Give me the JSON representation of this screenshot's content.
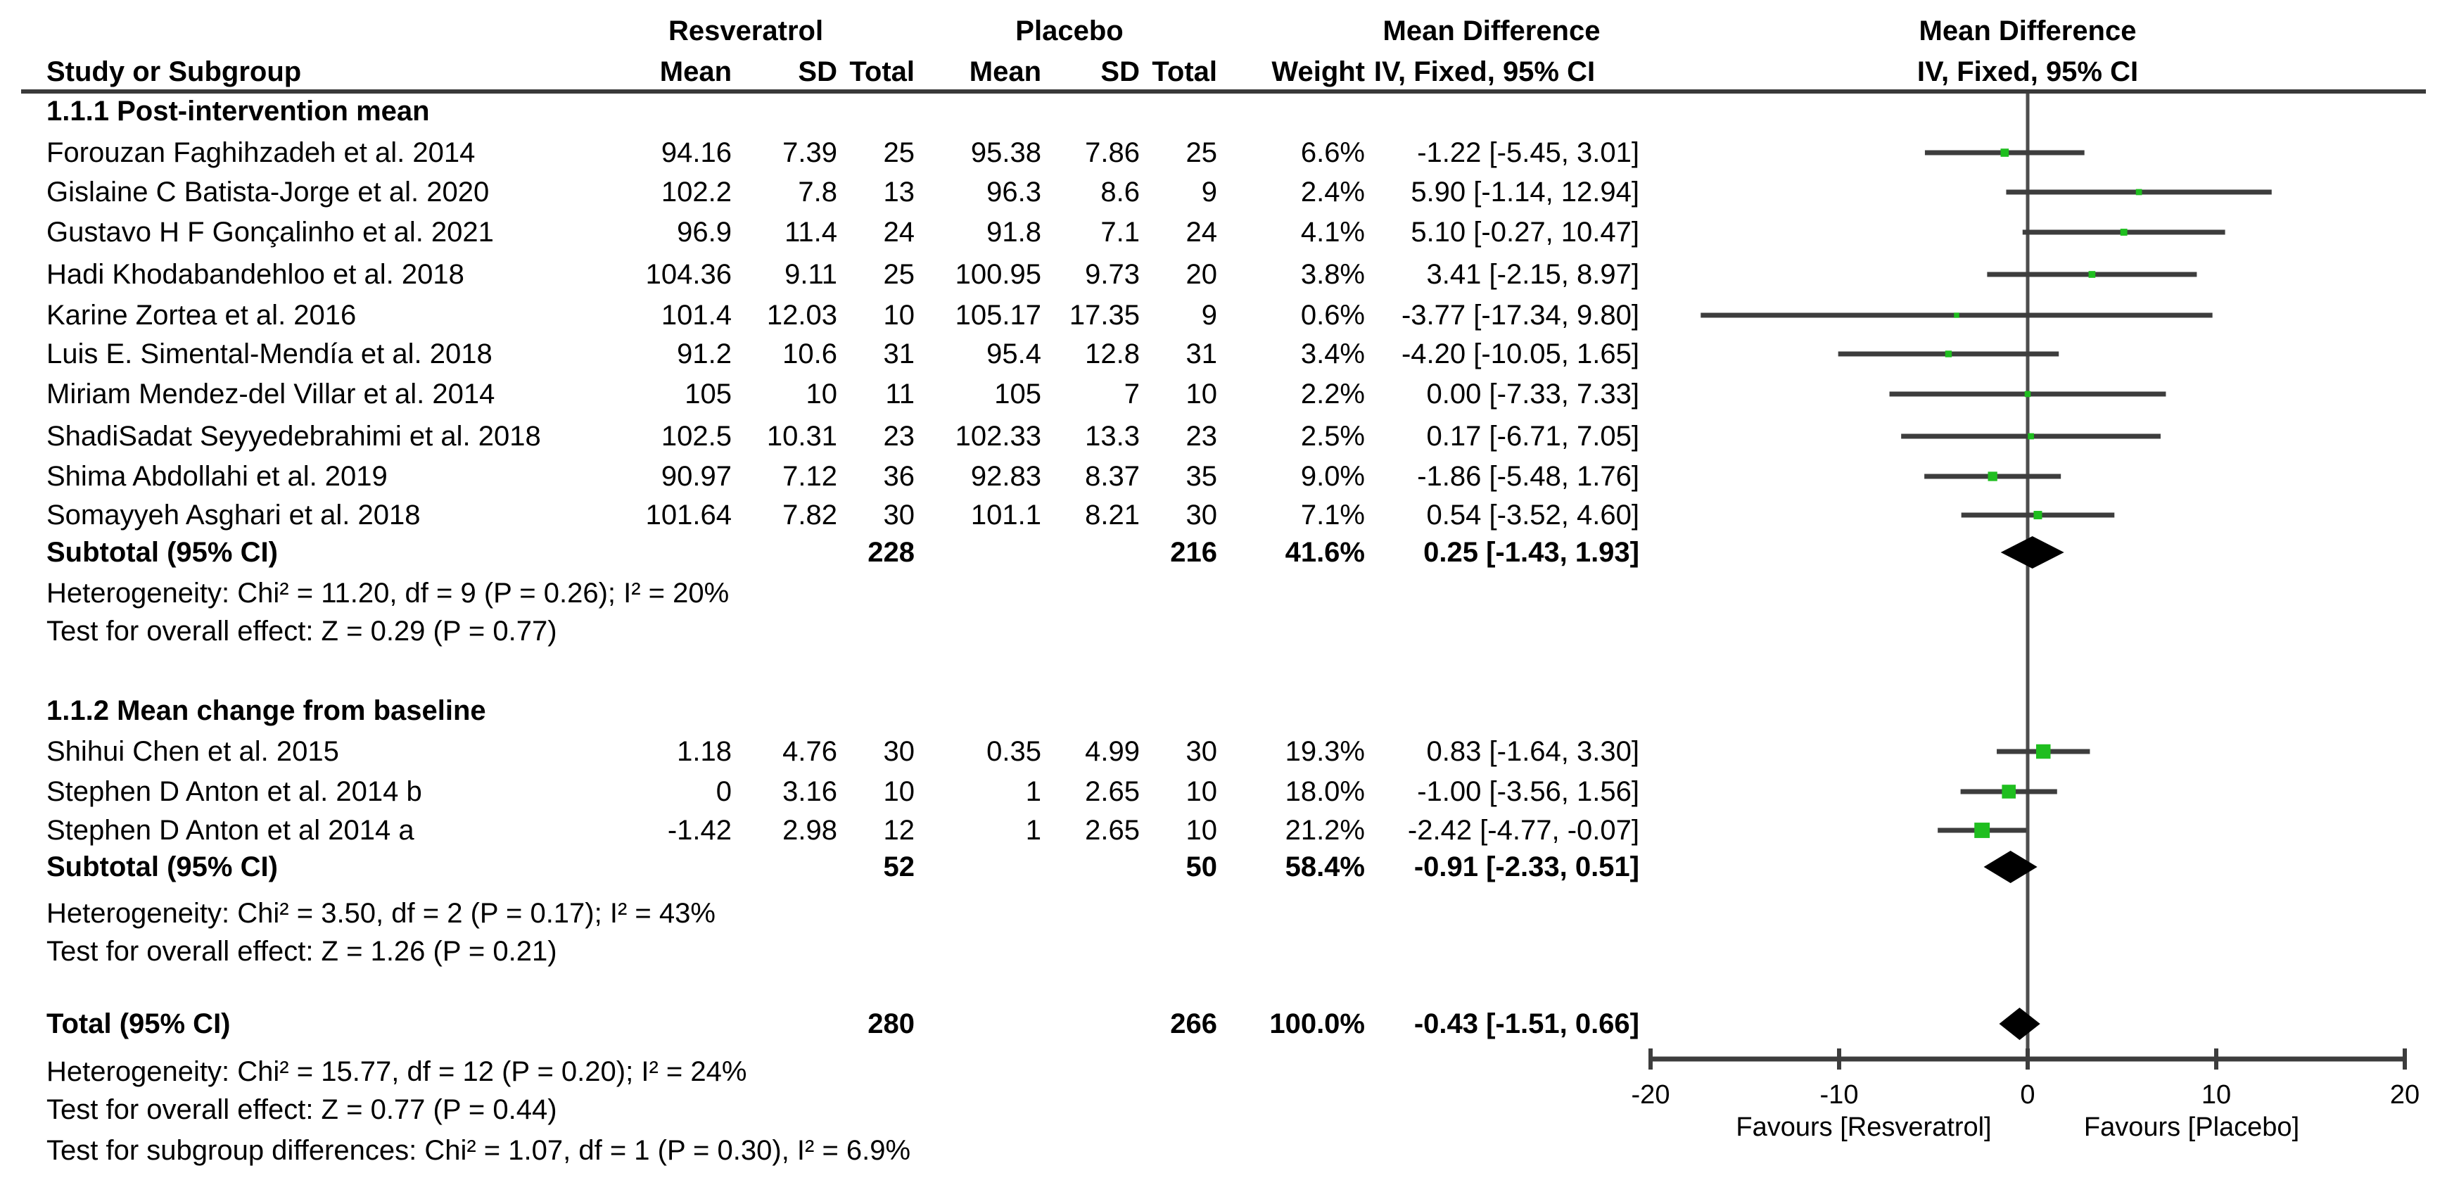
{
  "columns": {
    "group1": "Resveratrol",
    "group2": "Placebo",
    "effect_title": "Mean Difference",
    "study": "Study or Subgroup",
    "mean": "Mean",
    "sd": "SD",
    "total": "Total",
    "weight": "Weight",
    "method": "IV, Fixed, 95% CI",
    "plot_title": "Mean Difference",
    "plot_method": "IV, Fixed, 95% CI"
  },
  "chart_data": {
    "type": "forest",
    "effect_measure": "Mean Difference",
    "model": "IV, Fixed, 95% CI",
    "axis": {
      "min": -20,
      "max": 20,
      "ticks": [
        -20,
        -10,
        0,
        10,
        20
      ],
      "favours_left": "Favours [Resveratrol]",
      "favours_right": "Favours [Placebo]"
    },
    "groups": [
      {
        "label": "1.1.1 Post-intervention mean",
        "studies": [
          {
            "name": "Forouzan Faghihzadeh et al. 2014",
            "mean1": "94.16",
            "sd1": "7.39",
            "total1": "25",
            "mean2": "95.38",
            "sd2": "7.86",
            "total2": "25",
            "weight": "6.6%",
            "weight_value": 6.6,
            "md": -1.22,
            "ci_low": -5.45,
            "ci_high": 3.01,
            "md_text": "-1.22 [-5.45, 3.01]"
          },
          {
            "name": "Gislaine C Batista-Jorge et al. 2020",
            "mean1": "102.2",
            "sd1": "7.8",
            "total1": "13",
            "mean2": "96.3",
            "sd2": "8.6",
            "total2": "9",
            "weight": "2.4%",
            "weight_value": 2.4,
            "md": 5.9,
            "ci_low": -1.14,
            "ci_high": 12.94,
            "md_text": "5.90 [-1.14, 12.94]"
          },
          {
            "name": "Gustavo H F Gonçalinho et al. 2021",
            "mean1": "96.9",
            "sd1": "11.4",
            "total1": "24",
            "mean2": "91.8",
            "sd2": "7.1",
            "total2": "24",
            "weight": "4.1%",
            "weight_value": 4.1,
            "md": 5.1,
            "ci_low": -0.27,
            "ci_high": 10.47,
            "md_text": "5.10 [-0.27, 10.47]"
          },
          {
            "name": "Hadi Khodabandehloo et al. 2018",
            "mean1": "104.36",
            "sd1": "9.11",
            "total1": "25",
            "mean2": "100.95",
            "sd2": "9.73",
            "total2": "20",
            "weight": "3.8%",
            "weight_value": 3.8,
            "md": 3.41,
            "ci_low": -2.15,
            "ci_high": 8.97,
            "md_text": "3.41 [-2.15, 8.97]"
          },
          {
            "name": "Karine Zortea et al. 2016",
            "mean1": "101.4",
            "sd1": "12.03",
            "total1": "10",
            "mean2": "105.17",
            "sd2": "17.35",
            "total2": "9",
            "weight": "0.6%",
            "weight_value": 0.6,
            "md": -3.77,
            "ci_low": -17.34,
            "ci_high": 9.8,
            "md_text": "-3.77 [-17.34, 9.80]"
          },
          {
            "name": "Luis E. Simental-Mendía et al. 2018",
            "mean1": "91.2",
            "sd1": "10.6",
            "total1": "31",
            "mean2": "95.4",
            "sd2": "12.8",
            "total2": "31",
            "weight": "3.4%",
            "weight_value": 3.4,
            "md": -4.2,
            "ci_low": -10.05,
            "ci_high": 1.65,
            "md_text": "-4.20 [-10.05, 1.65]"
          },
          {
            "name": "Miriam Mendez-del Villar et al. 2014",
            "mean1": "105",
            "sd1": "10",
            "total1": "11",
            "mean2": "105",
            "sd2": "7",
            "total2": "10",
            "weight": "2.2%",
            "weight_value": 2.2,
            "md": 0.0,
            "ci_low": -7.33,
            "ci_high": 7.33,
            "md_text": "0.00 [-7.33, 7.33]"
          },
          {
            "name": "ShadiSadat Seyyedebrahimi et al. 2018",
            "mean1": "102.5",
            "sd1": "10.31",
            "total1": "23",
            "mean2": "102.33",
            "sd2": "13.3",
            "total2": "23",
            "weight": "2.5%",
            "weight_value": 2.5,
            "md": 0.17,
            "ci_low": -6.71,
            "ci_high": 7.05,
            "md_text": "0.17 [-6.71, 7.05]"
          },
          {
            "name": "Shima Abdollahi et al. 2019",
            "mean1": "90.97",
            "sd1": "7.12",
            "total1": "36",
            "mean2": "92.83",
            "sd2": "8.37",
            "total2": "35",
            "weight": "9.0%",
            "weight_value": 9.0,
            "md": -1.86,
            "ci_low": -5.48,
            "ci_high": 1.76,
            "md_text": "-1.86 [-5.48, 1.76]"
          },
          {
            "name": "Somayyeh Asghari et al. 2018",
            "mean1": "101.64",
            "sd1": "7.82",
            "total1": "30",
            "mean2": "101.1",
            "sd2": "8.21",
            "total2": "30",
            "weight": "7.1%",
            "weight_value": 7.1,
            "md": 0.54,
            "ci_low": -3.52,
            "ci_high": 4.6,
            "md_text": "0.54 [-3.52, 4.60]"
          }
        ],
        "subtotal": {
          "label": "Subtotal (95% CI)",
          "total1": "228",
          "total2": "216",
          "weight": "41.6%",
          "md": 0.25,
          "ci_low": -1.43,
          "ci_high": 1.93,
          "md_text": "0.25 [-1.43, 1.93]"
        },
        "heterogeneity": "Heterogeneity: Chi² = 11.20, df = 9 (P = 0.26); I² = 20%",
        "overall_effect": "Test for overall effect: Z = 0.29 (P = 0.77)"
      },
      {
        "label": "1.1.2 Mean change from baseline",
        "studies": [
          {
            "name": "Shihui Chen et al. 2015",
            "mean1": "1.18",
            "sd1": "4.76",
            "total1": "30",
            "mean2": "0.35",
            "sd2": "4.99",
            "total2": "30",
            "weight": "19.3%",
            "weight_value": 19.3,
            "md": 0.83,
            "ci_low": -1.64,
            "ci_high": 3.3,
            "md_text": "0.83 [-1.64, 3.30]"
          },
          {
            "name": "Stephen D Anton et al. 2014 b",
            "mean1": "0",
            "sd1": "3.16",
            "total1": "10",
            "mean2": "1",
            "sd2": "2.65",
            "total2": "10",
            "weight": "18.0%",
            "weight_value": 18.0,
            "md": -1.0,
            "ci_low": -3.56,
            "ci_high": 1.56,
            "md_text": "-1.00 [-3.56, 1.56]"
          },
          {
            "name": "Stephen D Anton et al 2014 a",
            "mean1": "-1.42",
            "sd1": "2.98",
            "total1": "12",
            "mean2": "1",
            "sd2": "2.65",
            "total2": "10",
            "weight": "21.2%",
            "weight_value": 21.2,
            "md": -2.42,
            "ci_low": -4.77,
            "ci_high": -0.07,
            "md_text": "-2.42 [-4.77, -0.07]"
          }
        ],
        "subtotal": {
          "label": "Subtotal (95% CI)",
          "total1": "52",
          "total2": "50",
          "weight": "58.4%",
          "md": -0.91,
          "ci_low": -2.33,
          "ci_high": 0.51,
          "md_text": "-0.91 [-2.33, 0.51]"
        },
        "heterogeneity": "Heterogeneity: Chi² = 3.50, df = 2 (P = 0.17); I² = 43%",
        "overall_effect": "Test for overall effect: Z = 1.26 (P = 0.21)"
      }
    ],
    "total": {
      "label": "Total (95% CI)",
      "total1": "280",
      "total2": "266",
      "weight": "100.0%",
      "md": -0.43,
      "ci_low": -1.51,
      "ci_high": 0.66,
      "md_text": "-0.43 [-1.51, 0.66]"
    },
    "total_heterogeneity": "Heterogeneity: Chi² = 15.77, df = 12 (P = 0.20); I² = 24%",
    "total_overall_effect": "Test for overall effect: Z = 0.77 (P = 0.44)",
    "subgroup_differences": "Test for subgroup differences: Chi² = 1.07, df = 1 (P = 0.30), I² = 6.9%",
    "colors": {
      "marker_green": "#1fbe1f",
      "ci_line": "#3d3d3d",
      "diamond": "#000000",
      "axis": "#3d3d3d",
      "zero_line": "#4d4d4d"
    }
  }
}
